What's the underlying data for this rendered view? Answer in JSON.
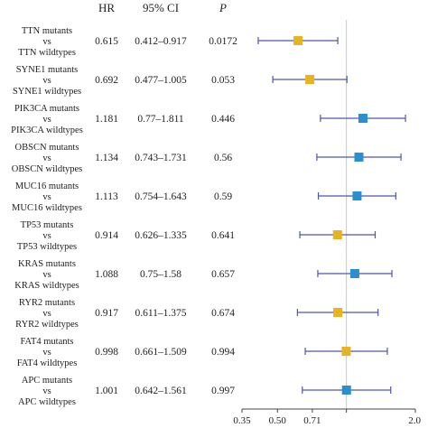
{
  "chart_data": {
    "type": "forest",
    "headers": {
      "hr": "HR",
      "ci": "95% CI",
      "p": "P"
    },
    "rows": [
      {
        "mut": "TTN mutants",
        "vs": "vs",
        "wt": "TTN wildtypes",
        "hr": 0.615,
        "hr_text": "0.615",
        "lo": 0.412,
        "hi": 0.917,
        "ci_text": "0.412–0.917",
        "p_text": "0.0172",
        "color": "#e8b320"
      },
      {
        "mut": "SYNE1 mutants",
        "vs": "vs",
        "wt": "SYNE1 wildtypes",
        "hr": 0.692,
        "hr_text": "0.692",
        "lo": 0.477,
        "hi": 1.005,
        "ci_text": "0.477–1.005",
        "p_text": "0.053",
        "color": "#e8b320"
      },
      {
        "mut": "PIK3CA mutants",
        "vs": "vs",
        "wt": "PIK3CA wildtypes",
        "hr": 1.181,
        "hr_text": "1.181",
        "lo": 0.77,
        "hi": 1.811,
        "ci_text": "0.77–1.811",
        "p_text": "0.446",
        "color": "#2a8fcf"
      },
      {
        "mut": "OBSCN mutants",
        "vs": "vs",
        "wt": "OBSCN wildtypes",
        "hr": 1.134,
        "hr_text": "1.134",
        "lo": 0.743,
        "hi": 1.731,
        "ci_text": "0.743–1.731",
        "p_text": "0.56",
        "color": "#2a8fcf"
      },
      {
        "mut": "MUC16 mutants",
        "vs": "vs",
        "wt": "MUC16 wildtypes",
        "hr": 1.113,
        "hr_text": "1.113",
        "lo": 0.754,
        "hi": 1.643,
        "ci_text": "0.754–1.643",
        "p_text": "0.59",
        "color": "#2a8fcf"
      },
      {
        "mut": "TP53 mutants",
        "vs": "vs",
        "wt": "TP53 wildtypes",
        "hr": 0.914,
        "hr_text": "0.914",
        "lo": 0.626,
        "hi": 1.335,
        "ci_text": "0.626–1.335",
        "p_text": "0.641",
        "color": "#e8b320"
      },
      {
        "mut": "KRAS mutants",
        "vs": "vs",
        "wt": "KRAS wildtypes",
        "hr": 1.088,
        "hr_text": "1.088",
        "lo": 0.75,
        "hi": 1.58,
        "ci_text": "0.75–1.58",
        "p_text": "0.657",
        "color": "#2a8fcf"
      },
      {
        "mut": "RYR2 mutants",
        "vs": "vs",
        "wt": "RYR2 wildtypes",
        "hr": 0.917,
        "hr_text": "0.917",
        "lo": 0.611,
        "hi": 1.375,
        "ci_text": "0.611–1.375",
        "p_text": "0.674",
        "color": "#e8b320"
      },
      {
        "mut": "FAT4 mutants",
        "vs": "vs",
        "wt": "FAT4 wildtypes",
        "hr": 0.998,
        "hr_text": "0.998",
        "lo": 0.661,
        "hi": 1.509,
        "ci_text": "0.661–1.509",
        "p_text": "0.994",
        "color": "#e8b320"
      },
      {
        "mut": "APC mutants",
        "vs": "vs",
        "wt": "APC wildtypes",
        "hr": 1.001,
        "hr_text": "1.001",
        "lo": 0.642,
        "hi": 1.561,
        "ci_text": "0.642–1.561",
        "p_text": "0.997",
        "color": "#2a8fcf"
      }
    ],
    "x_axis": {
      "scale": "log",
      "ticks": [
        0.35,
        0.5,
        0.71,
        1.0,
        2.0
      ],
      "tick_labels": [
        "0.35",
        "0.50",
        "0.71",
        "",
        "2.0"
      ],
      "range": [
        0.35,
        2.0
      ],
      "reference_line": 1.0
    },
    "colors": {
      "ci_line": "#4f57a8",
      "reference_line": "#c8c8c8",
      "axis": "#444444"
    }
  }
}
